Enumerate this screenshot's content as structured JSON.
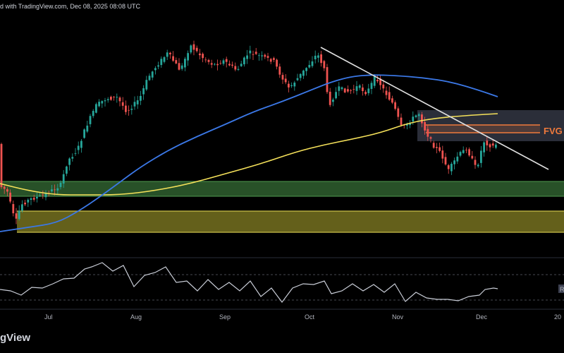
{
  "header": {
    "published_text": "d with TradingView.com, Dec 08, 2025 08:08 UTC"
  },
  "footer": {
    "brand": "gView"
  },
  "colors": {
    "background": "#000000",
    "bull": "#26a69a",
    "bear": "#ef5350",
    "ma_fast": "#3b78e7",
    "ma_slow": "#f5e15a",
    "trendline": "#e0e0e0",
    "fvg": "#f07a3c",
    "green_zone": "#2f5f2f",
    "yellow_zone": "#6f6a1e",
    "oscillator": "#c8ccd6"
  },
  "chart_data": {
    "type": "candlestick",
    "x_axis": {
      "tick_labels": [
        "Jul",
        "Aug",
        "Sep",
        "Oct",
        "Nov",
        "Dec",
        "20"
      ]
    },
    "annotations": {
      "fvg_label": "FVG",
      "oscillator_right_label": "R"
    },
    "price_series_shape": "rise from late June low to mid-August high, sideways to early October, decline to late November low, small bounce into early December",
    "moving_averages": [
      {
        "role": "fast",
        "color": "#3b78e7"
      },
      {
        "role": "slow",
        "color": "#f5e15a"
      }
    ],
    "zones": [
      "green support zone",
      "yellow support zone",
      "gray resistance zone",
      "orange FVG band"
    ],
    "grid": false
  }
}
